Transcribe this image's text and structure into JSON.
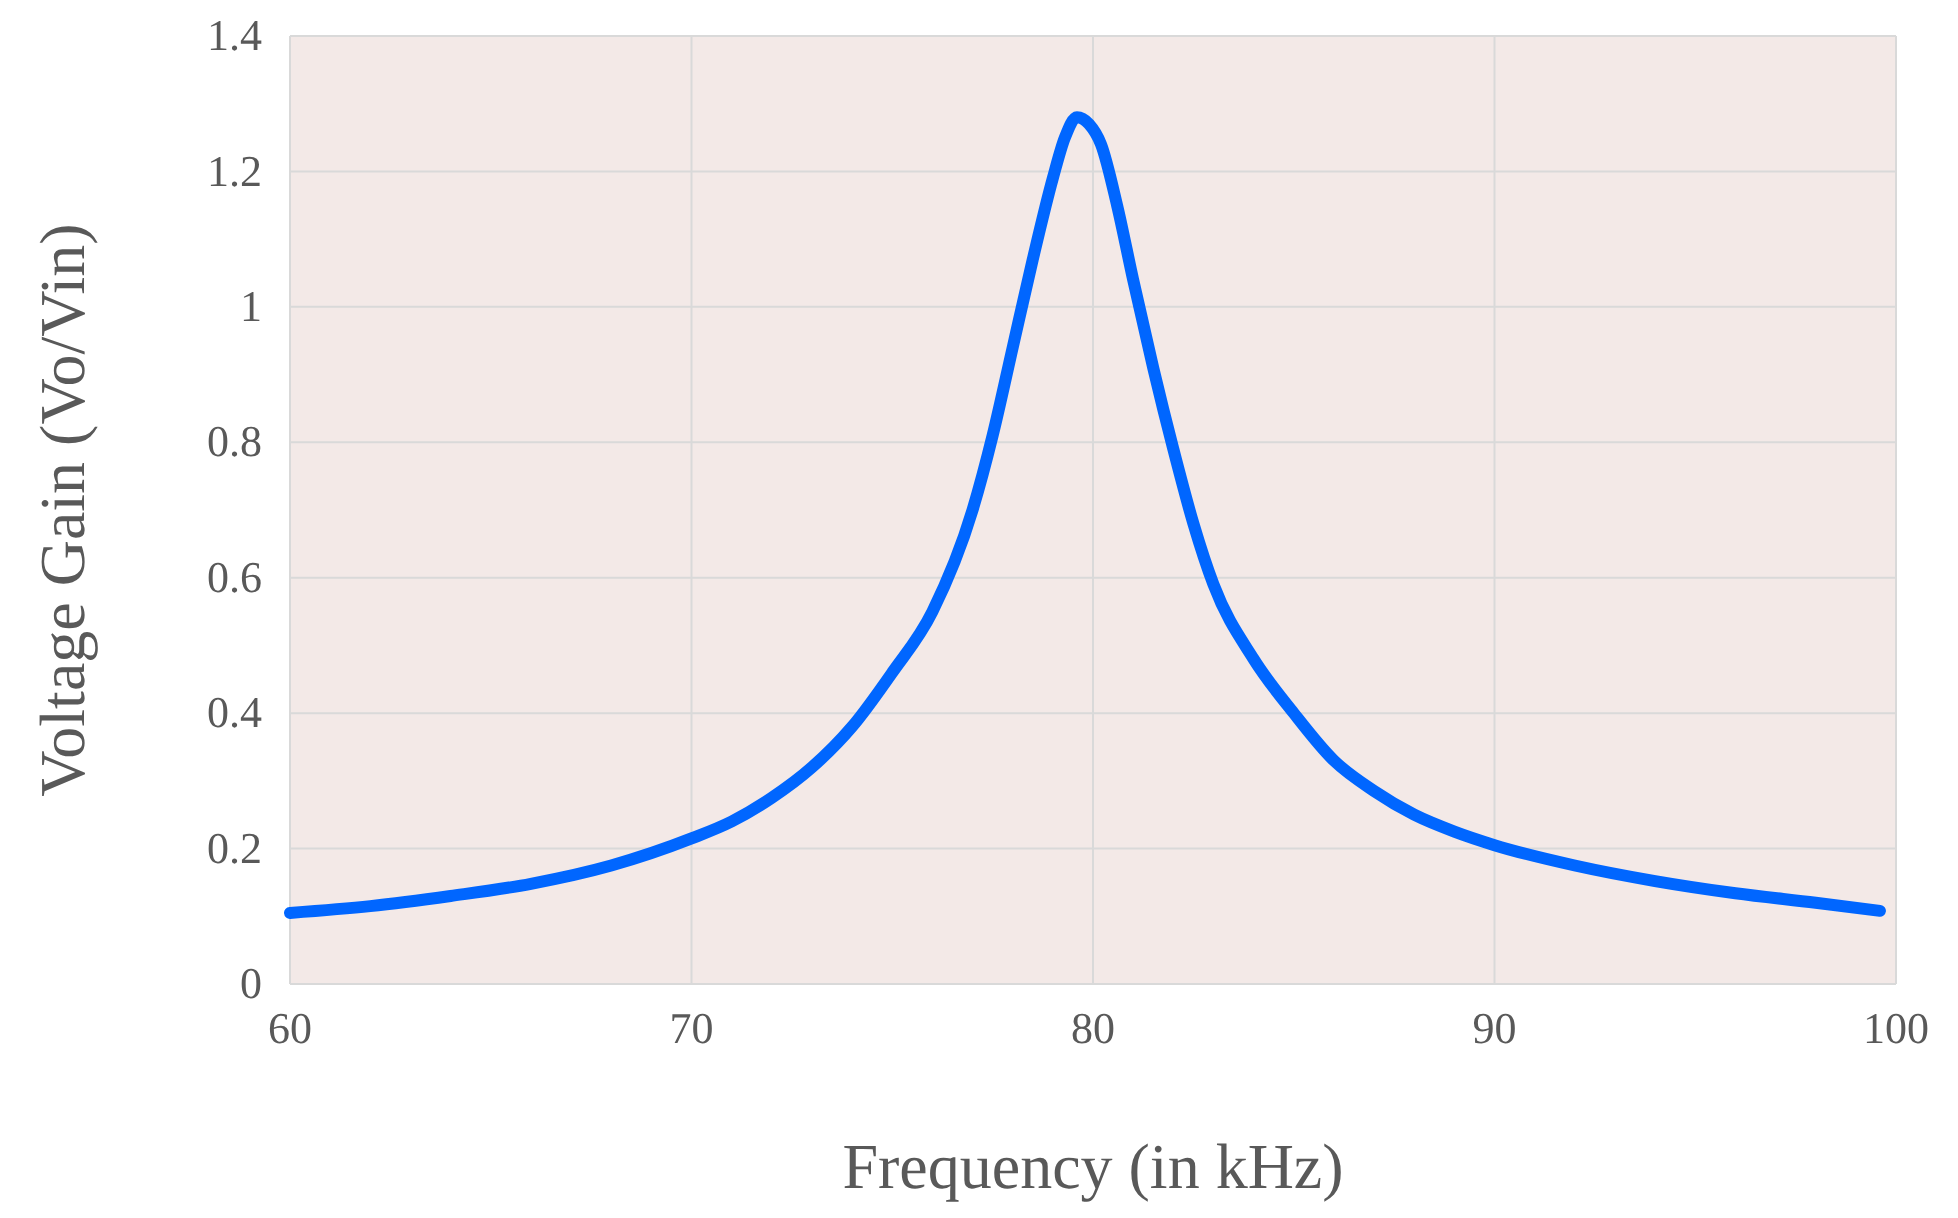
{
  "chart_data": {
    "type": "line",
    "xlabel": "Frequency  (in kHz)",
    "ylabel": "Voltage  Gain  (Vo/Vin)",
    "x": [
      60,
      62,
      64,
      66,
      68,
      70,
      71,
      72,
      73,
      74,
      75,
      76,
      77,
      77.5,
      78,
      78.5,
      79,
      79.3,
      79.6,
      79.9,
      80.2,
      80.6,
      81,
      81.5,
      82,
      82.5,
      83,
      84,
      85,
      86,
      87,
      88,
      89,
      90,
      92,
      94,
      96,
      98,
      99.6
    ],
    "series": [
      {
        "color": "#0066ff",
        "values": [
          0.105,
          0.115,
          0.13,
          0.148,
          0.175,
          0.215,
          0.24,
          0.275,
          0.32,
          0.38,
          0.46,
          0.55,
          0.7,
          0.81,
          0.94,
          1.07,
          1.19,
          1.25,
          1.28,
          1.27,
          1.24,
          1.15,
          1.04,
          0.91,
          0.79,
          0.68,
          0.59,
          0.48,
          0.4,
          0.33,
          0.285,
          0.25,
          0.225,
          0.205,
          0.175,
          0.152,
          0.134,
          0.12,
          0.108
        ]
      }
    ],
    "xlim": [
      60,
      100
    ],
    "ylim": [
      0,
      1.4
    ],
    "xticks": [
      60,
      70,
      80,
      90,
      100
    ],
    "yticks": [
      0,
      0.2,
      0.4,
      0.6,
      0.8,
      1,
      1.2,
      1.4
    ],
    "grid": true,
    "marker": "none",
    "line_style": "solid"
  }
}
